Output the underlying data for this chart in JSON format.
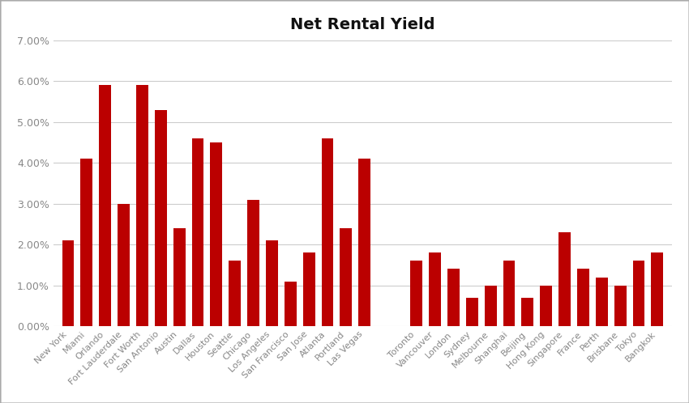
{
  "title": "Net Rental Yield",
  "bar_color": "#BB0000",
  "background_color": "#FFFFFF",
  "grid_color": "#CCCCCC",
  "ylim": [
    0,
    0.07
  ],
  "yticks": [
    0.0,
    0.01,
    0.02,
    0.03,
    0.04,
    0.05,
    0.06,
    0.07
  ],
  "categories": [
    "New York",
    "Miami",
    "Orlando",
    "Fort Lauderdale",
    "Fort Worth",
    "San Antonio",
    "Austin",
    "Dallas",
    "Houston",
    "Seattle",
    "Chicago",
    "Los Angeles",
    "San Francisco",
    "San Jose",
    "Atlanta",
    "Portland",
    "Las Vegas",
    "GAP",
    "Toronto",
    "Vancouver",
    "London",
    "Sydney",
    "Melbourne",
    "Shanghai",
    "Beijing",
    "Hong Kong",
    "Singapore",
    "France",
    "Perth",
    "Brisbane",
    "Tokyo",
    "Bangkok"
  ],
  "values": [
    0.021,
    0.041,
    0.059,
    0.03,
    0.059,
    0.053,
    0.024,
    0.046,
    0.045,
    0.016,
    0.031,
    0.021,
    0.011,
    0.018,
    0.046,
    0.024,
    0.041,
    0,
    0.016,
    0.018,
    0.014,
    0.007,
    0.01,
    0.016,
    0.007,
    0.01,
    0.023,
    0.014,
    0.012,
    0.01,
    0.016,
    0.018
  ],
  "title_fontsize": 14,
  "tick_label_fontsize": 8,
  "ytick_label_color": "#888888",
  "xtick_label_color": "#888888"
}
